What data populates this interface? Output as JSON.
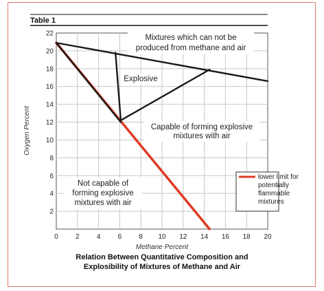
{
  "table_label": "Table 1",
  "caption": {
    "line1": "Relation Between Quantitative Composition and",
    "line2": "Explosibility of Mixtures of Methane and Air"
  },
  "colors": {
    "red_line": "#e03a24",
    "black_line": "#1a1a1a",
    "grid": "#c8c8c8",
    "frame": "#e07a6a"
  },
  "chart_data": {
    "type": "line",
    "xlabel": "Methane Percent",
    "ylabel": "Oxygen Percent",
    "xlim": [
      0,
      20
    ],
    "ylim": [
      0,
      22
    ],
    "x_ticks": [
      "0",
      "2",
      "4",
      "6",
      "8",
      "10",
      "12",
      "14",
      "16",
      "18",
      "20"
    ],
    "y_ticks": [
      "2",
      "4",
      "6",
      "8",
      "10",
      "12",
      "14",
      "16",
      "18",
      "20",
      "22"
    ],
    "grid": true,
    "series": [
      {
        "name": "lower limit for potentially flammable mixtures",
        "color": "#e03a24",
        "x": [
          0,
          14.5
        ],
        "y": [
          20.9,
          0
        ]
      },
      {
        "color": "#1a1a1a",
        "x": [
          0,
          20
        ],
        "y": [
          20.9,
          16.6
        ]
      },
      {
        "color": "#1a1a1a",
        "x": [
          0,
          6.1
        ],
        "y": [
          20.9,
          12.0
        ]
      },
      {
        "color": "#1a1a1a",
        "x": [
          5.6,
          6.1
        ],
        "y": [
          19.8,
          12.2
        ]
      },
      {
        "color": "#1a1a1a",
        "x": [
          6.1,
          14.5
        ],
        "y": [
          12.2,
          17.9
        ]
      }
    ],
    "annotations": {
      "top_region_line1": "Mixtures which can not be",
      "top_region_line2": "produced from methane and air",
      "explosive": "Explosive",
      "capable_line1": "Capable of forming explosive",
      "capable_line2": "mixtures with air",
      "not_capable_line1": "Not capable of",
      "not_capable_line2": "forming explosive",
      "not_capable_line3": "mixtures with air"
    },
    "legend": {
      "placement": "right",
      "line1": "lower limit for",
      "line2": "potentially",
      "line3": "flammable",
      "line4": "mixtures"
    }
  }
}
